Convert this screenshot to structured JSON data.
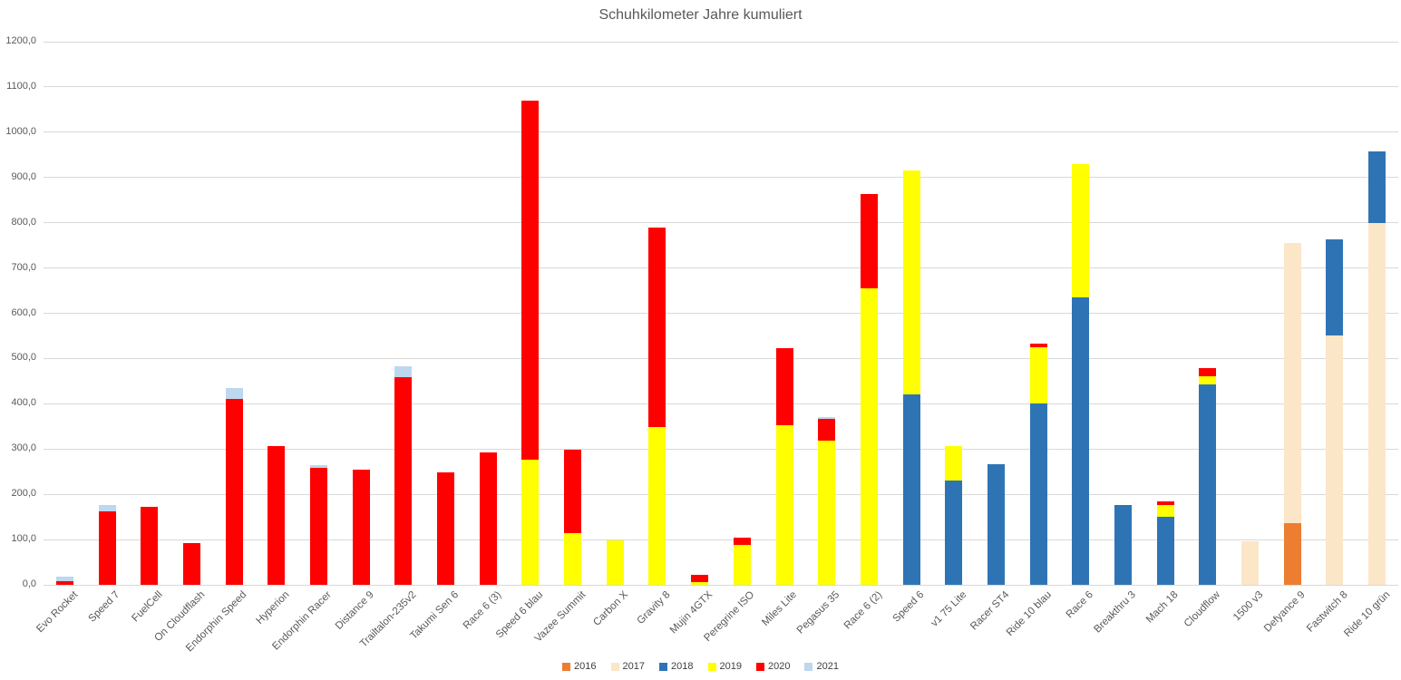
{
  "chart_data": {
    "type": "bar",
    "stacked": true,
    "title": "Schuhkilometer Jahre kumuliert",
    "xlabel": "",
    "ylabel": "",
    "ylim": [
      0,
      1200
    ],
    "ytick_step": 100,
    "y_tick_labels": [
      "0,0",
      "100,0",
      "200,0",
      "300,0",
      "400,0",
      "500,0",
      "600,0",
      "700,0",
      "800,0",
      "900,0",
      "1000,0",
      "1100,0",
      "1200,0"
    ],
    "grid": true,
    "legend_position": "bottom",
    "axis_text_color": "#595959",
    "gridline_color": "#D9D9D9",
    "categories": [
      "Evo Rocket",
      "Speed 7",
      "FuelCell",
      "On Cloudflash",
      "Endorphin Speed",
      "Hyperion",
      "Endorphin Racer",
      "Distance 9",
      "Trailtalon-235v2",
      "Takumi Sen 6",
      "Race 6 (3)",
      "Speed 6 blau",
      "Vazee Summit",
      "Carbon X",
      "Gravity 8",
      "Mujin 4GTX",
      "Peregrine ISO",
      "Miles Lite",
      "Pegasus 35",
      "Race 6 (2)",
      "Speed 6",
      "v1 75 Lite",
      "Racer ST4",
      "Ride 10 blau",
      "Race 6",
      "Breakthru 3",
      "Mach 18",
      "Cloudflow",
      "1500 v3",
      "Defyance 9",
      "Fastwitch 8",
      "Ride 10 grün"
    ],
    "series": [
      {
        "name": "2016",
        "color": "#ED7D31",
        "values": [
          0,
          0,
          0,
          0,
          0,
          0,
          0,
          0,
          0,
          0,
          0,
          0,
          0,
          0,
          0,
          0,
          0,
          0,
          0,
          0,
          0,
          0,
          0,
          0,
          0,
          0,
          0,
          0,
          0,
          137,
          0,
          0
        ]
      },
      {
        "name": "2017",
        "color": "#FBE6C7",
        "values": [
          0,
          0,
          0,
          0,
          0,
          0,
          0,
          0,
          0,
          0,
          0,
          0,
          0,
          0,
          0,
          0,
          0,
          0,
          0,
          0,
          0,
          0,
          0,
          0,
          0,
          0,
          0,
          0,
          97,
          619,
          550,
          799
        ]
      },
      {
        "name": "2018",
        "color": "#2E74B5",
        "values": [
          0,
          0,
          0,
          0,
          0,
          0,
          0,
          0,
          0,
          0,
          0,
          0,
          0,
          0,
          0,
          0,
          0,
          0,
          0,
          0,
          421,
          231,
          267,
          400,
          636,
          177,
          150,
          443,
          0,
          0,
          213,
          158
        ]
      },
      {
        "name": "2019",
        "color": "#FFFF00",
        "values": [
          0,
          0,
          0,
          0,
          0,
          0,
          0,
          0,
          0,
          0,
          0,
          277,
          115,
          98,
          349,
          7,
          88,
          353,
          318,
          655,
          494,
          75,
          0,
          125,
          293,
          0,
          27,
          18,
          0,
          0,
          0,
          0
        ]
      },
      {
        "name": "2020",
        "color": "#FF0000",
        "values": [
          9,
          163,
          173,
          92,
          410,
          307,
          258,
          254,
          458,
          248,
          292,
          793,
          183,
          0,
          441,
          16,
          17,
          169,
          49,
          208,
          0,
          0,
          0,
          8,
          0,
          0,
          8,
          18,
          0,
          0,
          0,
          0
        ]
      },
      {
        "name": "2021",
        "color": "#BDD7EE",
        "values": [
          10,
          13,
          0,
          0,
          25,
          0,
          7,
          0,
          25,
          0,
          0,
          0,
          0,
          0,
          0,
          0,
          0,
          0,
          3,
          0,
          0,
          0,
          0,
          0,
          0,
          0,
          0,
          0,
          0,
          0,
          0,
          0
        ]
      }
    ]
  }
}
